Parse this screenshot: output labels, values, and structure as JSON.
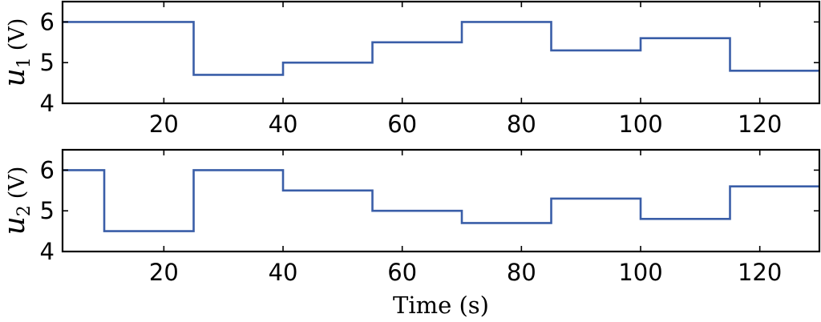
{
  "chart_data": [
    {
      "type": "line",
      "step": true,
      "ylabel": {
        "symbol": "u",
        "subscript": "1",
        "unit": "(V)"
      },
      "xlabel": "",
      "xlim": [
        3,
        130
      ],
      "ylim": [
        4,
        6.5
      ],
      "xticks": [
        20,
        40,
        60,
        80,
        100,
        120
      ],
      "yticks": [
        4,
        5,
        6
      ],
      "grid": false,
      "color": "#3a5ea8",
      "series": [
        {
          "x": [
            3,
            25,
            25,
            40,
            40,
            55,
            55,
            70,
            70,
            85,
            85,
            100,
            100,
            115,
            115,
            130
          ],
          "y": [
            6.0,
            6.0,
            4.7,
            4.7,
            5.0,
            5.0,
            5.5,
            5.5,
            6.0,
            6.0,
            5.3,
            5.3,
            5.6,
            5.6,
            4.8,
            4.8
          ]
        }
      ]
    },
    {
      "type": "line",
      "step": true,
      "ylabel": {
        "symbol": "u",
        "subscript": "2",
        "unit": "(V)"
      },
      "xlabel": "Time (s)",
      "xlim": [
        3,
        130
      ],
      "ylim": [
        4,
        6.5
      ],
      "xticks": [
        20,
        40,
        60,
        80,
        100,
        120
      ],
      "yticks": [
        4,
        5,
        6
      ],
      "grid": false,
      "color": "#3a5ea8",
      "series": [
        {
          "x": [
            3,
            10,
            10,
            25,
            25,
            40,
            40,
            55,
            55,
            70,
            70,
            85,
            85,
            100,
            100,
            115,
            115,
            130
          ],
          "y": [
            6.0,
            6.0,
            4.5,
            4.5,
            6.0,
            6.0,
            5.5,
            5.5,
            5.0,
            5.0,
            4.7,
            4.7,
            5.3,
            5.3,
            4.8,
            4.8,
            5.6,
            5.6
          ]
        }
      ]
    }
  ]
}
